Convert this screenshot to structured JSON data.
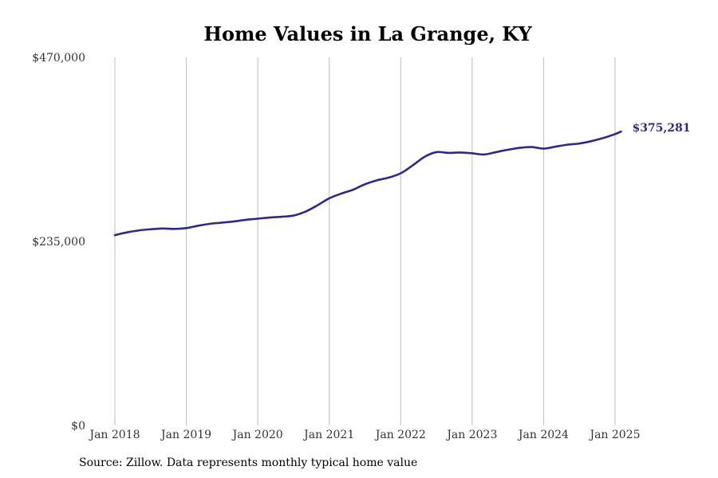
{
  "source_note": "Source: Zillow. Data represents monthly typical home value",
  "colors": {
    "line": "#2e2a8a",
    "grid": "#bdbdbd",
    "text": "#333333"
  },
  "chart_data": {
    "type": "line",
    "title": "Home Values in La Grange, KY",
    "xlabel": "",
    "ylabel": "",
    "ylim": [
      0,
      470000
    ],
    "xlim": [
      "2018-01",
      "2025-05"
    ],
    "y_ticks": [
      "$0",
      "$235,000",
      "$470,000"
    ],
    "y_tick_values": [
      0,
      235000,
      470000
    ],
    "x_ticks": [
      "Jan 2018",
      "Jan 2019",
      "Jan 2020",
      "Jan 2021",
      "Jan 2022",
      "Jan 2023",
      "Jan 2024",
      "Jan 2025"
    ],
    "x_tick_dates": [
      "2018-01",
      "2019-01",
      "2020-01",
      "2021-01",
      "2022-01",
      "2023-01",
      "2024-01",
      "2025-01"
    ],
    "grid": "vertical",
    "end_label": "$375,281",
    "series": [
      {
        "x": [
          "2018-01",
          "2018-03",
          "2018-05",
          "2018-07",
          "2018-09",
          "2018-11",
          "2019-01",
          "2019-03",
          "2019-05",
          "2019-07",
          "2019-09",
          "2019-11",
          "2020-01",
          "2020-03",
          "2020-05",
          "2020-07",
          "2020-09",
          "2020-11",
          "2021-01",
          "2021-03",
          "2021-05",
          "2021-07",
          "2021-09",
          "2021-11",
          "2022-01",
          "2022-03",
          "2022-05",
          "2022-07",
          "2022-09",
          "2022-11",
          "2023-01",
          "2023-03",
          "2023-05",
          "2023-07",
          "2023-09",
          "2023-11",
          "2024-01",
          "2024-03",
          "2024-05",
          "2024-07",
          "2024-09",
          "2024-11",
          "2025-01",
          "2025-02"
        ],
        "values": [
          243000,
          246500,
          249000,
          250500,
          251500,
          251000,
          252000,
          255000,
          257500,
          259000,
          260500,
          262500,
          264000,
          265500,
          266500,
          268000,
          273000,
          281000,
          290000,
          296000,
          301000,
          308000,
          313000,
          316500,
          322000,
          332000,
          343000,
          349000,
          348000,
          348500,
          347500,
          346000,
          349000,
          352000,
          354500,
          355500,
          353500,
          356000,
          358500,
          360000,
          363000,
          367000,
          372000,
          375281
        ]
      }
    ]
  }
}
